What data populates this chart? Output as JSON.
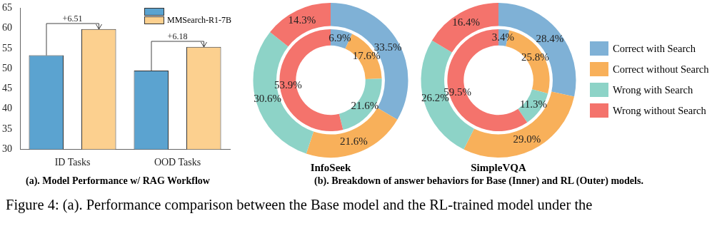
{
  "chart_data": [
    {
      "type": "bar",
      "categories": [
        "ID Tasks",
        "OOD Tasks"
      ],
      "series": [
        {
          "color": "#5ba3d0",
          "values": [
            53.3,
            49.5
          ]
        },
        {
          "name": "MMSearch-R1-7B",
          "color": "#fcd08f",
          "values": [
            59.8,
            55.4
          ]
        }
      ],
      "ylim": [
        30,
        65
      ],
      "yticks": [
        30,
        35,
        40,
        45,
        50,
        55,
        60,
        65
      ],
      "grid": false,
      "legend": "top right",
      "annotations": [
        "+6.51",
        "+6.18",
        "(a). Model Performance w/ RAG Workflow",
        "Figure 4: (a). Performance comparison between the Base model and the RL-trained model under the"
      ]
    },
    {
      "type": "donut",
      "title": "InfoSeek",
      "colors": [
        "#7fb1d6",
        "#f8b05a",
        "#8dd3c7",
        "#f4736c"
      ],
      "series": [
        {
          "values": [
            33.5,
            21.6,
            30.6,
            14.3
          ],
          "value_labels": [
            "33.5%",
            "21.6%",
            "30.6%",
            "14.3%"
          ]
        },
        {
          "values": [
            6.9,
            17.6,
            21.6,
            53.9
          ],
          "value_labels": [
            "6.9%",
            "17.6%",
            "21.6%",
            "53.9%"
          ]
        }
      ],
      "annotations": [
        "(b). Breakdown of answer behaviors for Base (Inner) and RL (Outer) models."
      ]
    },
    {
      "type": "donut",
      "title": "SimpleVQA",
      "categories": [
        "Correct with Search",
        "Correct without Search",
        "Wrong with Search",
        "Wrong without Search"
      ],
      "colors": [
        "#7fb1d6",
        "#f8b05a",
        "#8dd3c7",
        "#f4736c"
      ],
      "series": [
        {
          "values": [
            28.4,
            29.0,
            26.2,
            16.4
          ],
          "value_labels": [
            "28.4%",
            "29.0%",
            "26.2%",
            "16.4%"
          ]
        },
        {
          "values": [
            3.4,
            25.8,
            11.3,
            59.5
          ],
          "value_labels": [
            "3.4%",
            "25.8%",
            "11.3%",
            "59.5%"
          ]
        }
      ],
      "legend": "right"
    }
  ]
}
